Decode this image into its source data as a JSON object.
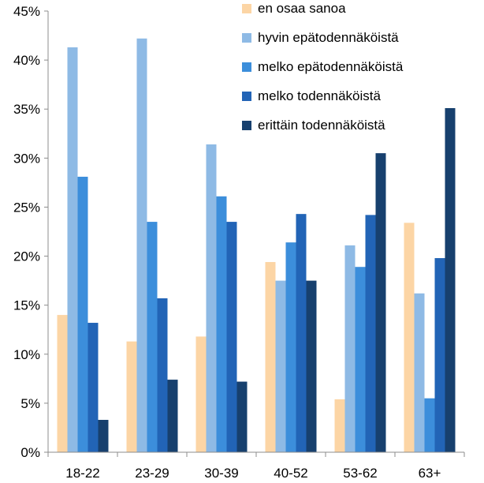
{
  "chart_data": {
    "type": "bar",
    "title": "",
    "xlabel": "",
    "ylabel": "",
    "categories": [
      "18-22",
      "23-29",
      "30-39",
      "40-52",
      "53-62",
      "63+"
    ],
    "ylim": [
      0,
      45
    ],
    "yticks": [
      0,
      5,
      10,
      15,
      20,
      25,
      30,
      35,
      40,
      45
    ],
    "ytick_labels": [
      "0%",
      "5%",
      "10%",
      "15%",
      "20%",
      "25%",
      "30%",
      "35%",
      "40%",
      "45%"
    ],
    "grid": false,
    "legend_position": "top-right",
    "series": [
      {
        "name": "en osaa sanoa",
        "color": "#FCD5A5",
        "values": [
          14.0,
          11.3,
          11.8,
          19.4,
          5.4,
          23.4
        ]
      },
      {
        "name": "hyvin epätodennäköistä",
        "color": "#8EBAE5",
        "values": [
          41.3,
          42.2,
          31.4,
          17.5,
          21.1,
          16.2
        ]
      },
      {
        "name": "melko epätodennäköistä",
        "color": "#3C8EDB",
        "values": [
          28.1,
          23.5,
          26.1,
          21.4,
          18.9,
          5.5
        ]
      },
      {
        "name": "melko todennäköistä",
        "color": "#2264B6",
        "values": [
          13.2,
          15.7,
          23.5,
          24.3,
          24.2,
          19.8
        ]
      },
      {
        "name": "erittäin todennäköistä",
        "color": "#17406E",
        "values": [
          3.3,
          7.4,
          7.2,
          17.5,
          30.5,
          35.1
        ]
      }
    ]
  }
}
